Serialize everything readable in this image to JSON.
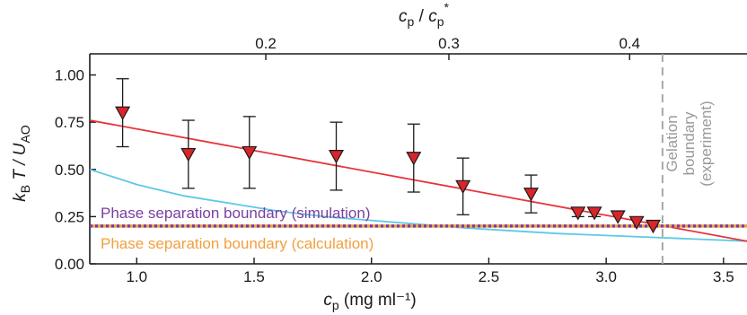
{
  "chart_data": {
    "type": "scatter",
    "xlabel": "c_p (mg ml⁻¹)",
    "ylabel": "k_B T / U_AO",
    "top_xlabel": "c_p / c_p*",
    "xlim": [
      0.8,
      3.6
    ],
    "ylim": [
      0.0,
      1.05
    ],
    "x_ticks": [
      1.0,
      1.5,
      2.0,
      2.5,
      3.0,
      3.5
    ],
    "x_tick_labels": [
      "1.0",
      "1.5",
      "2.0",
      "2.5",
      "3.0",
      "3.5"
    ],
    "y_ticks": [
      0.0,
      0.25,
      0.5,
      0.75,
      1.0
    ],
    "y_tick_labels": [
      "0.00",
      "0.25",
      "0.50",
      "0.75",
      "1.00"
    ],
    "top_ticks": [
      {
        "cp": 1.55,
        "label": "0.2"
      },
      {
        "cp": 2.33,
        "label": "0.3"
      },
      {
        "cp": 3.1,
        "label": "0.4"
      }
    ],
    "series": [
      {
        "marker": "triangle-down",
        "color": "#d9252a",
        "points": [
          {
            "x": 0.94,
            "y": 0.8,
            "yerr": 0.18
          },
          {
            "x": 1.22,
            "y": 0.58,
            "yerr": 0.18
          },
          {
            "x": 1.48,
            "y": 0.59,
            "yerr": 0.19
          },
          {
            "x": 1.85,
            "y": 0.57,
            "yerr": 0.18
          },
          {
            "x": 2.18,
            "y": 0.56,
            "yerr": 0.18
          },
          {
            "x": 2.39,
            "y": 0.41,
            "yerr": 0.15
          },
          {
            "x": 2.68,
            "y": 0.37,
            "yerr": 0.1
          },
          {
            "x": 2.88,
            "y": 0.27,
            "yerr": 0.02
          },
          {
            "x": 2.95,
            "y": 0.27,
            "yerr": 0.02
          },
          {
            "x": 3.05,
            "y": 0.25,
            "yerr": 0.0
          },
          {
            "x": 3.13,
            "y": 0.22,
            "yerr": 0.0
          },
          {
            "x": 3.2,
            "y": 0.2,
            "yerr": 0.0
          }
        ]
      }
    ],
    "fit_line": {
      "color": "#e8333a",
      "x": [
        0.8,
        3.6
      ],
      "y": [
        0.76,
        0.12
      ]
    },
    "curve": {
      "color": "#5ec8e8",
      "x": [
        0.8,
        1.0,
        1.2,
        1.4,
        1.6,
        1.8,
        2.0,
        2.2,
        2.4,
        2.6,
        2.8,
        3.0,
        3.2,
        3.4,
        3.6
      ],
      "y": [
        0.5,
        0.42,
        0.36,
        0.32,
        0.28,
        0.25,
        0.23,
        0.21,
        0.19,
        0.175,
        0.16,
        0.15,
        0.14,
        0.13,
        0.12
      ]
    },
    "hlines": [
      {
        "y": 0.2,
        "color": "#7a3fa0",
        "label": "Phase separation boundary (simulation)"
      },
      {
        "y": 0.2,
        "color": "#f0a040",
        "label": "Phase separation boundary (calculation)"
      }
    ],
    "vline": {
      "x": 3.24,
      "color": "#a8a8a8",
      "label": [
        "Gelation",
        "boundary",
        "(experiment)"
      ]
    }
  }
}
